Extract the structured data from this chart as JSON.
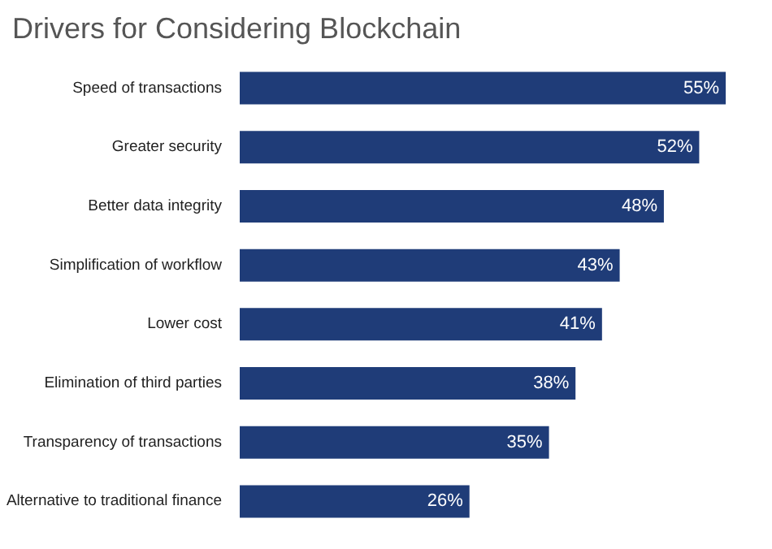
{
  "chart_data": {
    "type": "bar",
    "orientation": "horizontal",
    "title": "Drivers for Considering Blockchain",
    "categories": [
      "Speed of transactions",
      "Greater security",
      "Better data integrity",
      "Simplification of workflow",
      "Lower cost",
      "Elimination of third parties",
      "Transparency of transactions",
      "Alternative to traditional finance"
    ],
    "values": [
      55,
      52,
      48,
      43,
      41,
      38,
      35,
      26
    ],
    "value_labels": [
      "55%",
      "52%",
      "48%",
      "43%",
      "41%",
      "38%",
      "35%",
      "26%"
    ],
    "color": "#1f3c78"
  }
}
